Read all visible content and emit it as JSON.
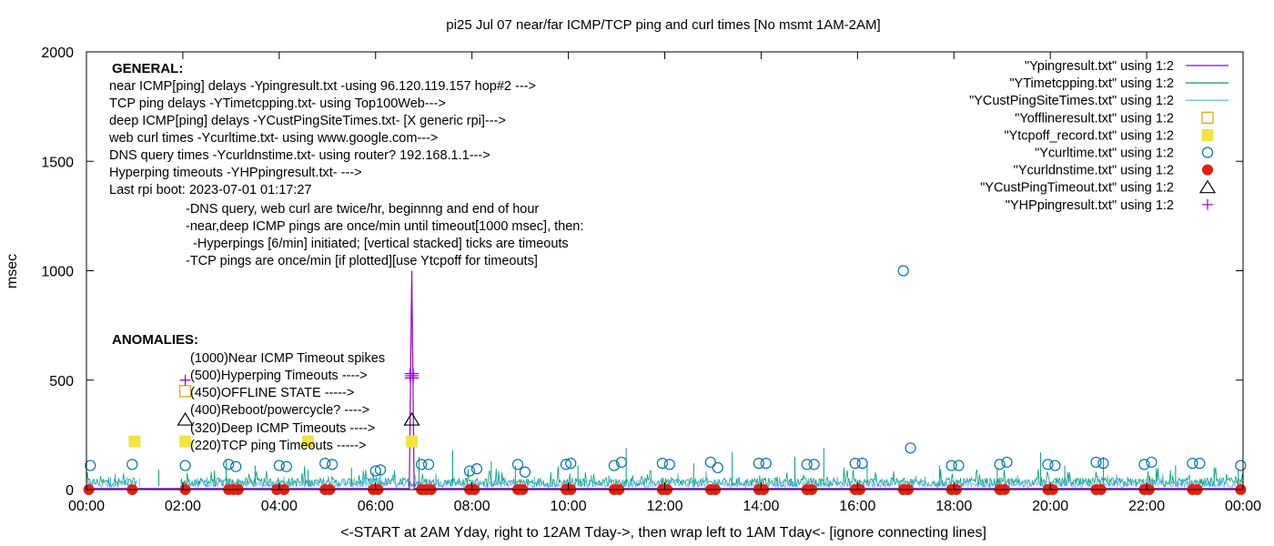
{
  "chart_data": {
    "type": "line",
    "title": "pi25 Jul 07  near/far ICMP/TCP ping and curl times [No msmt 1AM-2AM]",
    "xlabel": "<-START at 2AM Yday, right to 12AM Tday->, then wrap left to 1AM Tday<- [ignore connecting lines]",
    "ylabel": "msec",
    "xlim": [
      0,
      24
    ],
    "ylim": [
      0,
      2000
    ],
    "x_ticks": [
      "00:00",
      "02:00",
      "04:00",
      "06:00",
      "08:00",
      "10:00",
      "12:00",
      "14:00",
      "16:00",
      "18:00",
      "20:00",
      "22:00",
      "00:00"
    ],
    "y_ticks": [
      "0",
      "500",
      "1000",
      "1500",
      "2000"
    ],
    "grid": false,
    "legend_position": "top-right",
    "series": [
      {
        "name": "\"Ypingresult.txt\" using 1:2",
        "color": "#9400d3",
        "style": "line",
        "points": [
          [
            0,
            5
          ],
          [
            1,
            5
          ],
          [
            2,
            5
          ],
          [
            3,
            5
          ],
          [
            4,
            5
          ],
          [
            5,
            5
          ],
          [
            6,
            5
          ],
          [
            6.7,
            5
          ],
          [
            6.75,
            1000
          ],
          [
            6.8,
            5
          ],
          [
            8,
            5
          ],
          [
            10,
            5
          ],
          [
            12,
            5
          ],
          [
            14,
            5
          ],
          [
            16,
            5
          ],
          [
            18,
            5
          ],
          [
            20,
            5
          ],
          [
            22,
            5
          ],
          [
            24,
            5
          ]
        ]
      },
      {
        "name": "\"YTimetcpping.txt\" using 1:2",
        "color": "#009e73",
        "style": "line-noisy",
        "baseline": 30,
        "spread": 60,
        "spike_max": 200,
        "spikes": [
          [
            0.6,
            70
          ],
          [
            1.5,
            90
          ],
          [
            2.9,
            140
          ],
          [
            3.5,
            110
          ],
          [
            4.6,
            90
          ],
          [
            5.5,
            100
          ],
          [
            6.1,
            90
          ],
          [
            6.9,
            150
          ],
          [
            7.6,
            180
          ],
          [
            8.4,
            130
          ],
          [
            8.9,
            110
          ],
          [
            10.2,
            110
          ],
          [
            11.2,
            190
          ],
          [
            12.6,
            120
          ],
          [
            13.4,
            170
          ],
          [
            14.7,
            150
          ],
          [
            15.3,
            190
          ],
          [
            16.2,
            130
          ],
          [
            17.7,
            110
          ],
          [
            18.9,
            100
          ],
          [
            19.8,
            170
          ],
          [
            20.3,
            110
          ],
          [
            21.1,
            150
          ],
          [
            22.6,
            110
          ],
          [
            23.4,
            100
          ],
          [
            23.9,
            90
          ]
        ]
      },
      {
        "name": "\"YCustPingSiteTimes.txt\" using 1:2",
        "color": "#56b4e9",
        "style": "line-noisy",
        "baseline": 25,
        "spread": 45,
        "spike_max": 90,
        "spikes": [
          [
            0.5,
            55
          ],
          [
            1.1,
            50
          ],
          [
            2.5,
            45
          ],
          [
            4.1,
            60
          ],
          [
            5.8,
            55
          ],
          [
            7.3,
            50
          ],
          [
            9.3,
            60
          ],
          [
            11.7,
            55
          ],
          [
            13.1,
            50
          ],
          [
            15.8,
            55
          ],
          [
            17.4,
            60
          ],
          [
            19.2,
            55
          ],
          [
            21.6,
            60
          ],
          [
            23.2,
            55
          ]
        ]
      },
      {
        "name": "\"Yofflineresult.txt\" using 1:2",
        "color": "#e69f00",
        "style": "open-square",
        "points": [
          [
            2.05,
            450
          ]
        ]
      },
      {
        "name": "\"Ytcpoff_record.txt\" using 1:2",
        "color": "#f0e442",
        "style": "filled-square",
        "points": [
          [
            1.0,
            220
          ],
          [
            2.05,
            220
          ],
          [
            4.6,
            220
          ],
          [
            6.75,
            220
          ]
        ]
      },
      {
        "name": "\"Ycurltime.txt\" using 1:2",
        "color": "#0072b2",
        "style": "open-circle",
        "points": [
          [
            0.08,
            110
          ],
          [
            0.95,
            115
          ],
          [
            2.05,
            110
          ],
          [
            2.95,
            115
          ],
          [
            3.1,
            105
          ],
          [
            4.0,
            110
          ],
          [
            4.15,
            105
          ],
          [
            4.95,
            120
          ],
          [
            5.1,
            115
          ],
          [
            6.0,
            85
          ],
          [
            6.1,
            90
          ],
          [
            6.95,
            115
          ],
          [
            7.1,
            115
          ],
          [
            7.95,
            85
          ],
          [
            8.1,
            95
          ],
          [
            8.95,
            115
          ],
          [
            9.1,
            80
          ],
          [
            9.95,
            115
          ],
          [
            10.05,
            120
          ],
          [
            10.95,
            110
          ],
          [
            11.1,
            125
          ],
          [
            11.95,
            120
          ],
          [
            12.1,
            115
          ],
          [
            12.95,
            125
          ],
          [
            13.1,
            100
          ],
          [
            13.95,
            120
          ],
          [
            14.1,
            120
          ],
          [
            14.95,
            115
          ],
          [
            15.1,
            115
          ],
          [
            15.95,
            120
          ],
          [
            16.1,
            120
          ],
          [
            16.95,
            1000
          ],
          [
            17.1,
            190
          ],
          [
            17.95,
            110
          ],
          [
            18.1,
            110
          ],
          [
            18.95,
            115
          ],
          [
            19.1,
            125
          ],
          [
            19.95,
            115
          ],
          [
            20.1,
            110
          ],
          [
            20.95,
            125
          ],
          [
            21.1,
            120
          ],
          [
            21.95,
            115
          ],
          [
            22.1,
            125
          ],
          [
            22.95,
            120
          ],
          [
            23.1,
            120
          ],
          [
            23.95,
            110
          ]
        ]
      },
      {
        "name": "\"Ycurldnstime.txt\" using 1:2",
        "color": "#e51e10",
        "style": "filled-circle",
        "points": [
          [
            0.05,
            0
          ],
          [
            0.95,
            0
          ],
          [
            2.05,
            0
          ],
          [
            2.95,
            0
          ],
          [
            3.05,
            0
          ],
          [
            3.15,
            0
          ],
          [
            3.95,
            0
          ],
          [
            4.1,
            0
          ],
          [
            4.95,
            0
          ],
          [
            5.05,
            0
          ],
          [
            5.95,
            0
          ],
          [
            6.05,
            0
          ],
          [
            6.95,
            0
          ],
          [
            7.05,
            0
          ],
          [
            7.15,
            0
          ],
          [
            7.95,
            0
          ],
          [
            8.05,
            0
          ],
          [
            8.95,
            0
          ],
          [
            9.05,
            0
          ],
          [
            9.95,
            0
          ],
          [
            10.05,
            0
          ],
          [
            10.95,
            0
          ],
          [
            11.05,
            0
          ],
          [
            11.95,
            0
          ],
          [
            12.05,
            0
          ],
          [
            12.95,
            0
          ],
          [
            13.05,
            0
          ],
          [
            13.95,
            0
          ],
          [
            14.05,
            0
          ],
          [
            14.95,
            0
          ],
          [
            15.05,
            0
          ],
          [
            15.95,
            0
          ],
          [
            16.05,
            0
          ],
          [
            16.95,
            0
          ],
          [
            17.05,
            0
          ],
          [
            17.95,
            0
          ],
          [
            18.05,
            0
          ],
          [
            18.95,
            0
          ],
          [
            19.05,
            0
          ],
          [
            19.95,
            0
          ],
          [
            20.05,
            0
          ],
          [
            20.95,
            0
          ],
          [
            21.05,
            0
          ],
          [
            21.95,
            0
          ],
          [
            22.05,
            0
          ],
          [
            22.95,
            0
          ],
          [
            23.05,
            0
          ],
          [
            23.95,
            0
          ]
        ]
      },
      {
        "name": "\"YCustPingTimeout.txt\" using 1:2",
        "color": "#000000",
        "style": "open-triangle",
        "points": [
          [
            2.05,
            320
          ],
          [
            6.75,
            320
          ]
        ]
      },
      {
        "name": "\"YHPpingresult.txt\" using 1:2",
        "color": "#9400d3",
        "style": "plus",
        "points": [
          [
            2.05,
            500
          ],
          [
            6.72,
            510
          ],
          [
            6.72,
            520
          ],
          [
            6.72,
            530
          ],
          [
            6.78,
            510
          ],
          [
            6.78,
            520
          ],
          [
            6.78,
            530
          ]
        ]
      }
    ]
  },
  "annotations": {
    "general_heading": "GENERAL:",
    "general_lines": [
      "near ICMP[ping] delays -Ypingresult.txt -using 96.120.119.157 hop#2 --->",
      "TCP ping delays -YTimetcpping.txt- using Top100Web--->",
      "deep ICMP[ping] delays -YCustPingSiteTimes.txt- [X generic rpi]--->",
      "web curl times -Ycurltime.txt- using www.google.com--->",
      "DNS query times -Ycurldnstime.txt- using router? 192.168.1.1--->",
      "Hyperping timeouts -YHPpingresult.txt- --->",
      "Last rpi boot: 2023-07-01 01:17:27"
    ],
    "notes": [
      "-DNS query, web curl are twice/hr, beginnng and end of hour",
      "-near,deep ICMP pings are once/min until timeout[1000 msec], then:",
      "  -Hyperpings [6/min] initiated; [vertical stacked] ticks are timeouts",
      "-TCP pings are once/min [if plotted][use Ytcpoff for timeouts]"
    ],
    "anomalies_heading": "ANOMALIES:",
    "anomalies": [
      "(1000)Near ICMP Timeout spikes",
      "(500)Hyperping Timeouts ---->",
      "(450)OFFLINE STATE ----->",
      "(400)Reboot/powercycle? ---->",
      "(320)Deep ICMP Timeouts ---->",
      "(220)TCP ping Timeouts ----->"
    ]
  }
}
